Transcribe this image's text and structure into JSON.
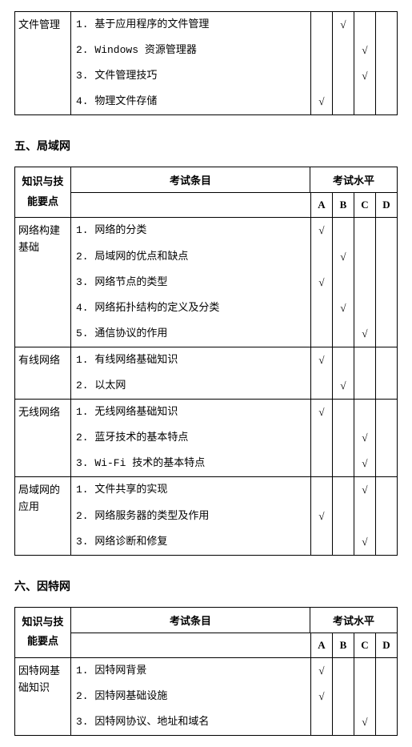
{
  "fragment_table": {
    "knowledge": "文件管理",
    "items": [
      {
        "text": "1. 基于应用程序的文件管理",
        "checks": [
          "",
          "√",
          "",
          ""
        ]
      },
      {
        "text": "2. Windows 资源管理器",
        "checks": [
          "",
          "",
          "√",
          ""
        ]
      },
      {
        "text": "3. 文件管理技巧",
        "checks": [
          "",
          "",
          "√",
          ""
        ]
      },
      {
        "text": "4. 物理文件存储",
        "checks": [
          "√",
          "",
          "",
          ""
        ]
      }
    ]
  },
  "section5": {
    "title": "五、局域网",
    "headers": {
      "knowledge": "知识与技能要点",
      "content": "考试条目",
      "level": "考试水平",
      "levels": [
        "A",
        "B",
        "C",
        "D"
      ]
    },
    "groups": [
      {
        "knowledge": "网络构建基础",
        "items": [
          {
            "text": "1. 网络的分类",
            "checks": [
              "√",
              "",
              "",
              ""
            ]
          },
          {
            "text": "2. 局域网的优点和缺点",
            "checks": [
              "",
              "√",
              "",
              ""
            ]
          },
          {
            "text": "3. 网络节点的类型",
            "checks": [
              "√",
              "",
              "",
              ""
            ]
          },
          {
            "text": "4. 网络拓扑结构的定义及分类",
            "checks": [
              "",
              "√",
              "",
              ""
            ]
          },
          {
            "text": "5. 通信协议的作用",
            "checks": [
              "",
              "",
              "√",
              ""
            ]
          }
        ]
      },
      {
        "knowledge": "有线网络",
        "items": [
          {
            "text": "1. 有线网络基础知识",
            "checks": [
              "√",
              "",
              "",
              ""
            ]
          },
          {
            "text": "2. 以太网",
            "checks": [
              "",
              "√",
              "",
              ""
            ]
          }
        ]
      },
      {
        "knowledge": "无线网络",
        "items": [
          {
            "text": "1. 无线网络基础知识",
            "checks": [
              "√",
              "",
              "",
              ""
            ]
          },
          {
            "text": "2. 蓝牙技术的基本特点",
            "checks": [
              "",
              "",
              "√",
              ""
            ]
          },
          {
            "text": "3. Wi-Fi 技术的基本特点",
            "checks": [
              "",
              "",
              "√",
              ""
            ]
          }
        ]
      },
      {
        "knowledge": "局域网的应用",
        "items": [
          {
            "text": "1. 文件共享的实现",
            "checks": [
              "",
              "",
              "√",
              ""
            ]
          },
          {
            "text": "2. 网络服务器的类型及作用",
            "checks": [
              "√",
              "",
              "",
              ""
            ]
          },
          {
            "text": "3. 网络诊断和修复",
            "checks": [
              "",
              "",
              "√",
              ""
            ]
          }
        ]
      }
    ]
  },
  "section6": {
    "title": "六、因特网",
    "headers": {
      "knowledge": "知识与技能要点",
      "content": "考试条目",
      "level": "考试水平",
      "levels": [
        "A",
        "B",
        "C",
        "D"
      ]
    },
    "groups": [
      {
        "knowledge": "因特网基础知识",
        "items": [
          {
            "text": "1. 因特网背景",
            "checks": [
              "√",
              "",
              "",
              ""
            ]
          },
          {
            "text": "2. 因特网基础设施",
            "checks": [
              "√",
              "",
              "",
              ""
            ]
          },
          {
            "text": "3. 因特网协议、地址和域名",
            "checks": [
              "",
              "",
              "√",
              ""
            ]
          }
        ]
      }
    ]
  }
}
